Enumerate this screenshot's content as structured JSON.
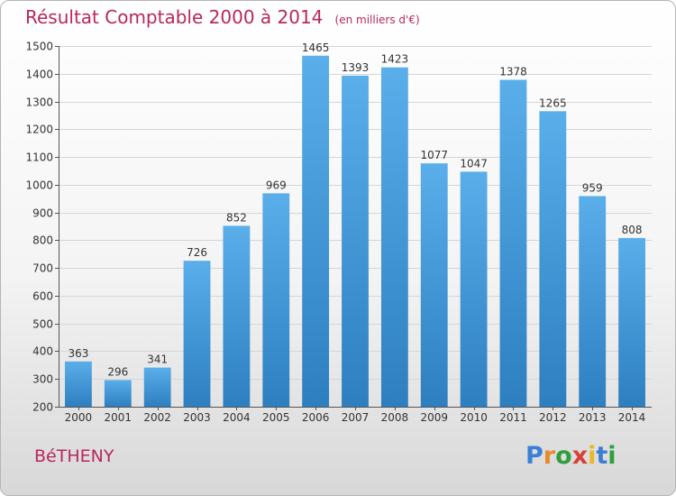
{
  "header": {
    "title": "Résultat Comptable 2000 à 2014",
    "subtitle": "(en milliers d'€)"
  },
  "footer": {
    "town": "BéTHENY",
    "brand": "Proxiti",
    "brand_letters": [
      {
        "ch": "P",
        "color": "#3b7fd4"
      },
      {
        "ch": "r",
        "color": "#e8892a"
      },
      {
        "ch": "o",
        "color": "#2e9e3e"
      },
      {
        "ch": "x",
        "color": "#d8413a"
      },
      {
        "ch": "i",
        "color": "#e8b92a"
      },
      {
        "ch": "t",
        "color": "#3b7fd4"
      },
      {
        "ch": "i",
        "color": "#2e9e3e"
      }
    ]
  },
  "colors": {
    "bar_top": "#5aaeea",
    "bar_bottom": "#2d7fc0",
    "accent": "#b8275e"
  },
  "chart_data": {
    "type": "bar",
    "title": "Résultat Comptable 2000 à 2014",
    "categories": [
      "2000",
      "2001",
      "2002",
      "2003",
      "2004",
      "2005",
      "2006",
      "2007",
      "2008",
      "2009",
      "2010",
      "2011",
      "2012",
      "2013",
      "2014"
    ],
    "values": [
      363,
      296,
      341,
      726,
      852,
      969,
      1465,
      1393,
      1423,
      1077,
      1047,
      1378,
      1265,
      959,
      808
    ],
    "ylim": [
      200,
      1500
    ],
    "yticks": [
      200,
      300,
      400,
      500,
      600,
      700,
      800,
      900,
      1000,
      1100,
      1200,
      1300,
      1400,
      1500
    ],
    "grid": true,
    "legend": "none"
  }
}
